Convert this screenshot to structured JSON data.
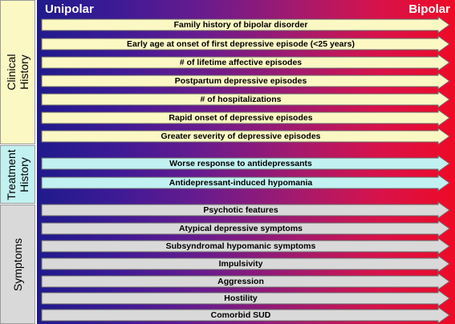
{
  "header": {
    "left_label": "Unipolar",
    "right_label": "Bipolar"
  },
  "groups": [
    {
      "label_lines": [
        "Clinical",
        "History"
      ],
      "color": "#fcf8c4"
    },
    {
      "label_lines": [
        "Treatment",
        "History"
      ],
      "color": "#c2f1f1"
    },
    {
      "label_lines": [
        "Symptoms"
      ],
      "color": "#d9d9d9"
    }
  ],
  "arrows": [
    {
      "label": "Family history of bipolar disorder",
      "group": 0
    },
    {
      "label": "Early age at onset of first depressive episode (<25 years)",
      "group": 0
    },
    {
      "label": "# of lifetime affective episodes",
      "group": 0
    },
    {
      "label": "Postpartum depressive episodes",
      "group": 0
    },
    {
      "label": "# of hospitalizations",
      "group": 0
    },
    {
      "label": "Rapid onset of depressive episodes",
      "group": 0
    },
    {
      "label": "Greater severity of depressive episodes",
      "group": 0
    },
    {
      "label": "Worse response to antidepressants",
      "group": 1
    },
    {
      "label": "Antidepressant-induced hypomania",
      "group": 1
    },
    {
      "label": "Psychotic features",
      "group": 2
    },
    {
      "label": "Atypical depressive symptoms",
      "group": 2
    },
    {
      "label": "Subsyndromal hypomanic symptoms",
      "group": 2
    },
    {
      "label": "Impulsivity",
      "group": 2
    },
    {
      "label": "Aggression",
      "group": 2
    },
    {
      "label": "Hostility",
      "group": 2
    },
    {
      "label": "Comorbid SUD",
      "group": 2
    }
  ]
}
